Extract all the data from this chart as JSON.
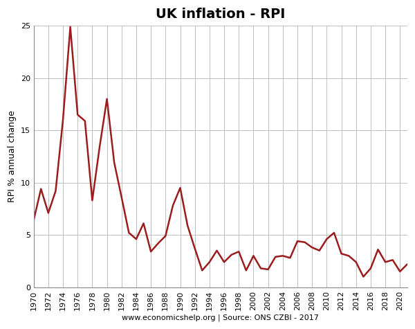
{
  "title": "UK inflation - RPI",
  "xlabel": "www.economicshelp.org | Source: ONS CZBI - 2017",
  "ylabel": "RPI % annual change",
  "years": [
    1970,
    1971,
    1972,
    1973,
    1974,
    1975,
    1976,
    1977,
    1978,
    1979,
    1980,
    1981,
    1982,
    1983,
    1984,
    1985,
    1986,
    1987,
    1988,
    1989,
    1990,
    1991,
    1992,
    1993,
    1994,
    1995,
    1996,
    1997,
    1998,
    1999,
    2000,
    2001,
    2002,
    2003,
    2004,
    2005,
    2006,
    2007,
    2008,
    2009,
    2010,
    2011,
    2012,
    2013,
    2014,
    2015,
    2016,
    2017,
    2018,
    2019,
    2020,
    2021
  ],
  "values": [
    6.4,
    9.4,
    7.1,
    9.2,
    16.0,
    24.9,
    16.5,
    15.9,
    8.3,
    13.4,
    18.0,
    11.9,
    8.6,
    5.2,
    4.6,
    6.1,
    3.4,
    4.2,
    4.9,
    7.8,
    9.5,
    5.9,
    3.7,
    1.6,
    2.4,
    3.5,
    2.4,
    3.1,
    3.4,
    1.6,
    3.0,
    1.8,
    1.7,
    2.9,
    3.0,
    2.8,
    4.4,
    4.3,
    3.8,
    3.5,
    4.6,
    5.2,
    3.2,
    3.0,
    2.4,
    1.0,
    1.8,
    3.6,
    2.4,
    2.6,
    1.5,
    2.2
  ],
  "line_color": "#9b1c1c",
  "background_color": "#ffffff",
  "grid_color": "#c0c0c0",
  "ylim": [
    0,
    25
  ],
  "yticks": [
    0,
    5,
    10,
    15,
    20,
    25
  ],
  "title_fontsize": 14,
  "ylabel_fontsize": 9,
  "xlabel_fontsize": 8,
  "tick_fontsize": 8
}
